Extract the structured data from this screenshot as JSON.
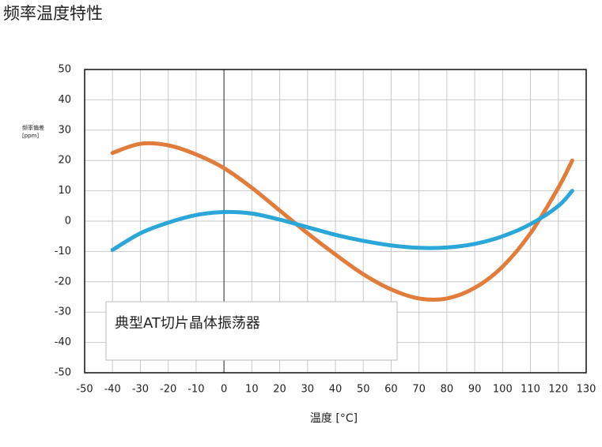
{
  "chart_data": {
    "type": "line",
    "title": "频率温度特性",
    "ylabel": [
      "频率偏差",
      "[ppm]"
    ],
    "xlabel": "温度 [°C]",
    "legend_title": "典型AT切片晶体振荡器",
    "x": [
      -40,
      -30,
      -20,
      -10,
      0,
      10,
      20,
      30,
      40,
      50,
      60,
      70,
      80,
      90,
      100,
      110,
      120,
      125
    ],
    "series": [
      {
        "color": "#e27c3a",
        "values": [
          22.5,
          25.5,
          25,
          22,
          17.5,
          11,
          3.5,
          -4,
          -11,
          -17.5,
          -22.5,
          -25.5,
          -25.5,
          -22,
          -15,
          -4,
          11,
          20
        ]
      },
      {
        "color": "#2ba6d9",
        "values": [
          -9.5,
          -4,
          -0.5,
          2,
          3,
          2.5,
          0.5,
          -2,
          -4.5,
          -6.5,
          -8,
          -8.8,
          -8.7,
          -7.5,
          -5,
          -1,
          5,
          10
        ]
      }
    ],
    "xlim": [
      -50,
      130
    ],
    "xticks": [
      -50,
      -40,
      -30,
      -20,
      -10,
      0,
      10,
      20,
      30,
      40,
      50,
      60,
      70,
      80,
      90,
      100,
      110,
      120,
      130
    ],
    "ylim": [
      -50,
      50
    ],
    "yticks": [
      -50,
      -40,
      -30,
      -20,
      -10,
      0,
      10,
      20,
      30,
      40,
      50
    ],
    "grid": true
  }
}
